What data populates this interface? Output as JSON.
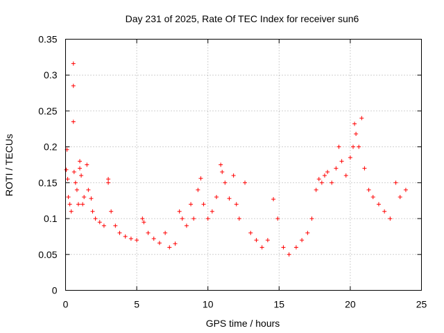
{
  "chart_data": {
    "type": "scatter",
    "title": "Day 231 of 2025, Rate Of TEC Index for receiver sun6",
    "xlabel": "GPS time / hours",
    "ylabel": "ROTI / TECUs",
    "xlim": [
      0,
      25
    ],
    "ylim": [
      0,
      0.35
    ],
    "x_ticks": [
      0,
      5,
      10,
      15,
      20,
      25
    ],
    "y_ticks": [
      0,
      0.05,
      0.1,
      0.15,
      0.2,
      0.25,
      0.3,
      0.35
    ],
    "x_tick_labels": [
      "0",
      "5",
      "10",
      "15",
      "20",
      "25"
    ],
    "y_tick_labels": [
      "0",
      "0.05",
      "0.1",
      "0.15",
      "0.2",
      "0.25",
      "0.3",
      "0.35"
    ],
    "grid": true,
    "marker": "+",
    "color": "#ff0000",
    "series": [
      {
        "points": [
          [
            0.05,
            0.168
          ],
          [
            0.1,
            0.196
          ],
          [
            0.15,
            0.155
          ],
          [
            0.2,
            0.13
          ],
          [
            0.3,
            0.12
          ],
          [
            0.4,
            0.11
          ],
          [
            0.55,
            0.316
          ],
          [
            0.55,
            0.285
          ],
          [
            0.55,
            0.235
          ],
          [
            0.6,
            0.165
          ],
          [
            0.7,
            0.15
          ],
          [
            0.8,
            0.14
          ],
          [
            0.9,
            0.12
          ],
          [
            1.0,
            0.18
          ],
          [
            1.0,
            0.17
          ],
          [
            1.1,
            0.16
          ],
          [
            1.2,
            0.12
          ],
          [
            1.3,
            0.13
          ],
          [
            1.5,
            0.175
          ],
          [
            1.6,
            0.14
          ],
          [
            1.8,
            0.128
          ],
          [
            1.9,
            0.11
          ],
          [
            2.1,
            0.1
          ],
          [
            2.4,
            0.095
          ],
          [
            2.7,
            0.09
          ],
          [
            3.0,
            0.155
          ],
          [
            3.0,
            0.15
          ],
          [
            3.2,
            0.11
          ],
          [
            3.5,
            0.09
          ],
          [
            3.8,
            0.08
          ],
          [
            4.2,
            0.075
          ],
          [
            4.6,
            0.072
          ],
          [
            5.0,
            0.07
          ],
          [
            5.4,
            0.1
          ],
          [
            5.5,
            0.095
          ],
          [
            5.8,
            0.08
          ],
          [
            6.2,
            0.072
          ],
          [
            6.6,
            0.066
          ],
          [
            7.0,
            0.08
          ],
          [
            7.3,
            0.06
          ],
          [
            7.7,
            0.065
          ],
          [
            8.0,
            0.11
          ],
          [
            8.2,
            0.1
          ],
          [
            8.5,
            0.09
          ],
          [
            8.8,
            0.12
          ],
          [
            9.0,
            0.1
          ],
          [
            9.3,
            0.14
          ],
          [
            9.5,
            0.156
          ],
          [
            9.7,
            0.12
          ],
          [
            10.0,
            0.1
          ],
          [
            10.3,
            0.11
          ],
          [
            10.6,
            0.13
          ],
          [
            10.9,
            0.175
          ],
          [
            11.0,
            0.165
          ],
          [
            11.2,
            0.15
          ],
          [
            11.5,
            0.128
          ],
          [
            11.8,
            0.16
          ],
          [
            12.0,
            0.12
          ],
          [
            12.2,
            0.1
          ],
          [
            12.6,
            0.15
          ],
          [
            13.0,
            0.08
          ],
          [
            13.4,
            0.07
          ],
          [
            13.8,
            0.06
          ],
          [
            14.2,
            0.07
          ],
          [
            14.6,
            0.127
          ],
          [
            14.9,
            0.1
          ],
          [
            15.3,
            0.06
          ],
          [
            15.7,
            0.05
          ],
          [
            16.2,
            0.06
          ],
          [
            16.6,
            0.07
          ],
          [
            17.0,
            0.08
          ],
          [
            17.3,
            0.1
          ],
          [
            17.6,
            0.14
          ],
          [
            17.8,
            0.155
          ],
          [
            18.0,
            0.15
          ],
          [
            18.2,
            0.16
          ],
          [
            18.4,
            0.165
          ],
          [
            18.7,
            0.15
          ],
          [
            19.0,
            0.17
          ],
          [
            19.2,
            0.2
          ],
          [
            19.4,
            0.18
          ],
          [
            19.7,
            0.16
          ],
          [
            20.0,
            0.185
          ],
          [
            20.2,
            0.2
          ],
          [
            20.3,
            0.232
          ],
          [
            20.4,
            0.218
          ],
          [
            20.6,
            0.2
          ],
          [
            20.8,
            0.24
          ],
          [
            21.0,
            0.17
          ],
          [
            21.3,
            0.14
          ],
          [
            21.6,
            0.13
          ],
          [
            22.0,
            0.12
          ],
          [
            22.4,
            0.11
          ],
          [
            22.8,
            0.1
          ],
          [
            23.2,
            0.15
          ],
          [
            23.5,
            0.13
          ],
          [
            23.9,
            0.14
          ]
        ]
      }
    ]
  }
}
